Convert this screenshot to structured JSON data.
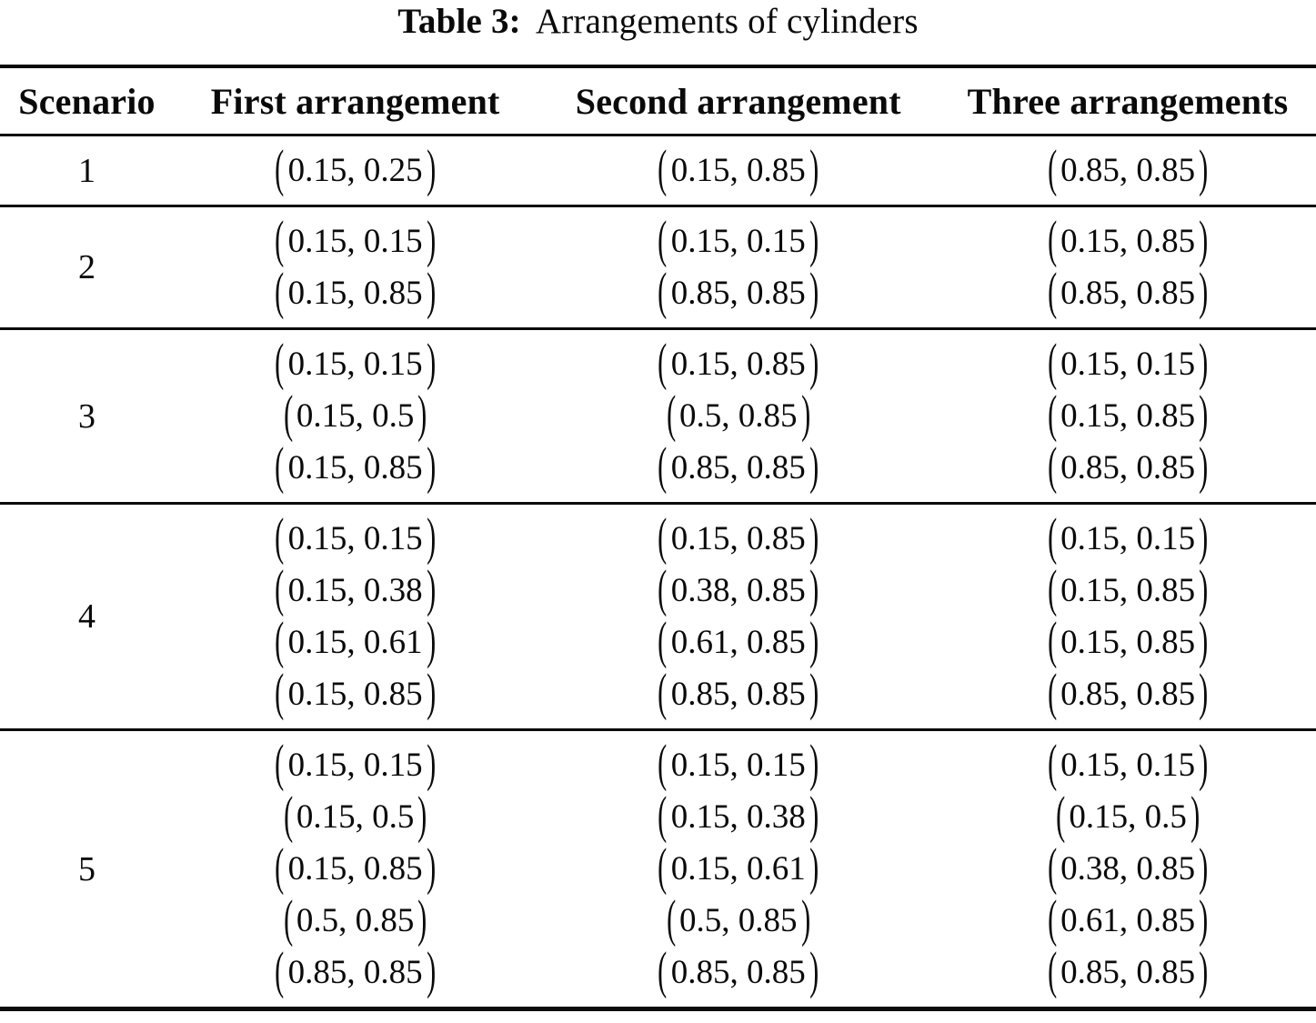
{
  "caption": {
    "label": "Table 3:",
    "title": "Arrangements of cylinders"
  },
  "table": {
    "columns": [
      "Scenario",
      "First arrangement",
      "Second arrangement",
      "Three arrangements"
    ],
    "rows": [
      {
        "scenario": "1",
        "arrangements": [
          [
            "(0.15, 0.25)"
          ],
          [
            "(0.15, 0.85)"
          ],
          [
            "(0.85, 0.85)"
          ]
        ]
      },
      {
        "scenario": "2",
        "arrangements": [
          [
            "(0.15, 0.15)",
            "(0.15, 0.85)"
          ],
          [
            "(0.15, 0.15)",
            "(0.85, 0.85)"
          ],
          [
            "(0.15, 0.85)",
            "(0.85, 0.85)"
          ]
        ]
      },
      {
        "scenario": "3",
        "arrangements": [
          [
            "(0.15, 0.15)",
            "(0.15, 0.5)",
            "(0.15, 0.85)"
          ],
          [
            "(0.15, 0.85)",
            "(0.5, 0.85)",
            "(0.85, 0.85)"
          ],
          [
            "(0.15, 0.15)",
            "(0.15, 0.85)",
            "(0.85, 0.85)"
          ]
        ]
      },
      {
        "scenario": "4",
        "arrangements": [
          [
            "(0.15, 0.15)",
            "(0.15, 0.38)",
            "(0.15, 0.61)",
            "(0.15, 0.85)"
          ],
          [
            "(0.15, 0.85)",
            "(0.38, 0.85)",
            "(0.61, 0.85)",
            "(0.85, 0.85)"
          ],
          [
            "(0.15, 0.15)",
            "(0.15, 0.85)",
            "(0.15, 0.85)",
            "(0.85, 0.85)"
          ]
        ]
      },
      {
        "scenario": "5",
        "arrangements": [
          [
            "(0.15, 0.15)",
            "(0.15, 0.5)",
            "(0.15, 0.85)",
            "(0.5, 0.85)",
            "(0.85, 0.85)"
          ],
          [
            "(0.15, 0.15)",
            "(0.15, 0.38)",
            "(0.15, 0.61)",
            "(0.5, 0.85)",
            "(0.85, 0.85)"
          ],
          [
            "(0.15, 0.15)",
            "(0.15, 0.5)",
            "(0.38, 0.85)",
            "(0.61, 0.85)",
            "(0.85, 0.85)"
          ]
        ]
      }
    ]
  },
  "colors": {
    "text": "#0a0a0a",
    "background": "#ffffff",
    "rule": "#0a0a0a"
  }
}
